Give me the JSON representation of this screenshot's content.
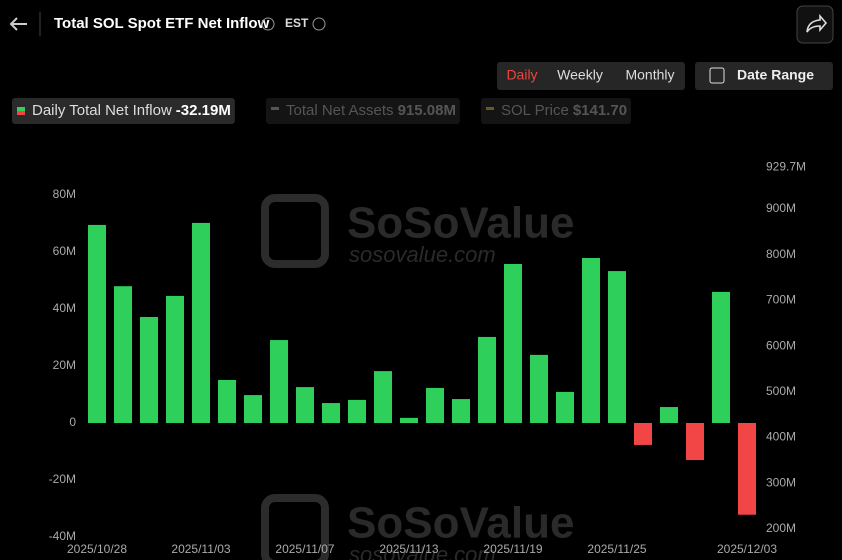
{
  "header": {
    "title": "Total SOL Spot ETF Net Inflow",
    "timezone": "EST"
  },
  "controls": {
    "periods": [
      "Daily",
      "Weekly",
      "Monthly"
    ],
    "date_range": "Date Range"
  },
  "chart_data": {
    "type": "bar",
    "categories": [
      "2025/10/28",
      null,
      null,
      null,
      "2025/11/03",
      null,
      null,
      null,
      "2025/11/07",
      null,
      null,
      null,
      "2025/11/13",
      null,
      null,
      null,
      "2025/11/19",
      null,
      null,
      null,
      "2025/11/25",
      null,
      null,
      null,
      null,
      "2025/12/03"
    ],
    "series": [
      {
        "name": "Daily Total Net Inflow",
        "color": "#2fcf5b",
        "negative_color": "#f24545",
        "values": [
          69.5,
          48,
          37.2,
          44.6,
          70.2,
          15.1,
          9.8,
          29.1,
          12.6,
          7,
          8.1,
          18.2,
          1.8,
          12.3,
          8.4,
          30.2,
          55.8,
          23.9,
          10.9,
          57.9,
          53.3,
          -7.7,
          5.6,
          -13,
          46,
          -32.19
        ]
      }
    ],
    "legend": [
      {
        "name": "Daily Total Net Inflow",
        "label": "-32.19M",
        "color": "#2fcf5b"
      },
      {
        "name": "Total Net Assets",
        "label": "915.08M",
        "color": "#555555"
      },
      {
        "name": "SOL Price",
        "label": "$141.70",
        "color": "#6b5a1e"
      }
    ],
    "ylim": [
      -40,
      80
    ],
    "yticks": [
      {
        "value": -40,
        "label": "-40M"
      },
      {
        "value": -20,
        "label": "-20M"
      },
      {
        "value": 0,
        "label": "0"
      },
      {
        "value": 20,
        "label": "20M"
      },
      {
        "value": 40,
        "label": "40M"
      },
      {
        "value": 60,
        "label": "60M"
      },
      {
        "value": 80,
        "label": "80M"
      }
    ],
    "y2lim": [
      182.5,
      930.6
    ],
    "y2ticks": [
      {
        "value": 200,
        "label": "200M"
      },
      {
        "value": 300,
        "label": "300M"
      },
      {
        "value": 400,
        "label": "400M"
      },
      {
        "value": 500,
        "label": "500M"
      },
      {
        "value": 600,
        "label": "600M"
      },
      {
        "value": 700,
        "label": "700M"
      },
      {
        "value": 800,
        "label": "800M"
      },
      {
        "value": 900,
        "label": "900M"
      },
      {
        "value": 929.7,
        "label": "929.7M"
      }
    ],
    "watermark": [
      "SoSoValue",
      "sosovalue.com"
    ]
  }
}
